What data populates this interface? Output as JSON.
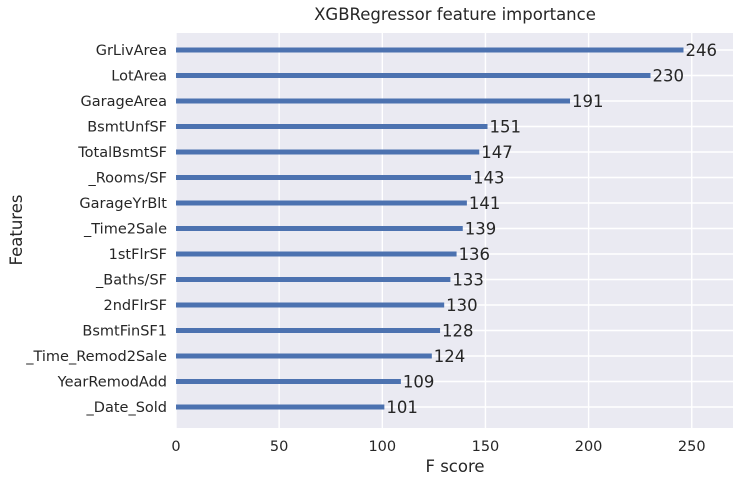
{
  "chart_data": {
    "type": "bar",
    "orientation": "horizontal",
    "title": "XGBRegressor feature importance",
    "xlabel": "F score",
    "ylabel": "Features",
    "xlim": [
      0,
      270
    ],
    "xticks": [
      0,
      50,
      100,
      150,
      200,
      250
    ],
    "grid": true,
    "colors": {
      "bar": "#4c72b0",
      "background": "#eaeaf2",
      "grid": "#ffffff",
      "text": "#262626"
    },
    "categories": [
      "GrLivArea",
      "LotArea",
      "GarageArea",
      "BsmtUnfSF",
      "TotalBsmtSF",
      "_Rooms/SF",
      "GarageYrBlt",
      "_Time2Sale",
      "1stFlrSF",
      "_Baths/SF",
      "2ndFlrSF",
      "BsmtFinSF1",
      "_Time_Remod2Sale",
      "YearRemodAdd",
      "_Date_Sold"
    ],
    "values": [
      246,
      230,
      191,
      151,
      147,
      143,
      141,
      139,
      136,
      133,
      130,
      128,
      124,
      109,
      101
    ]
  }
}
